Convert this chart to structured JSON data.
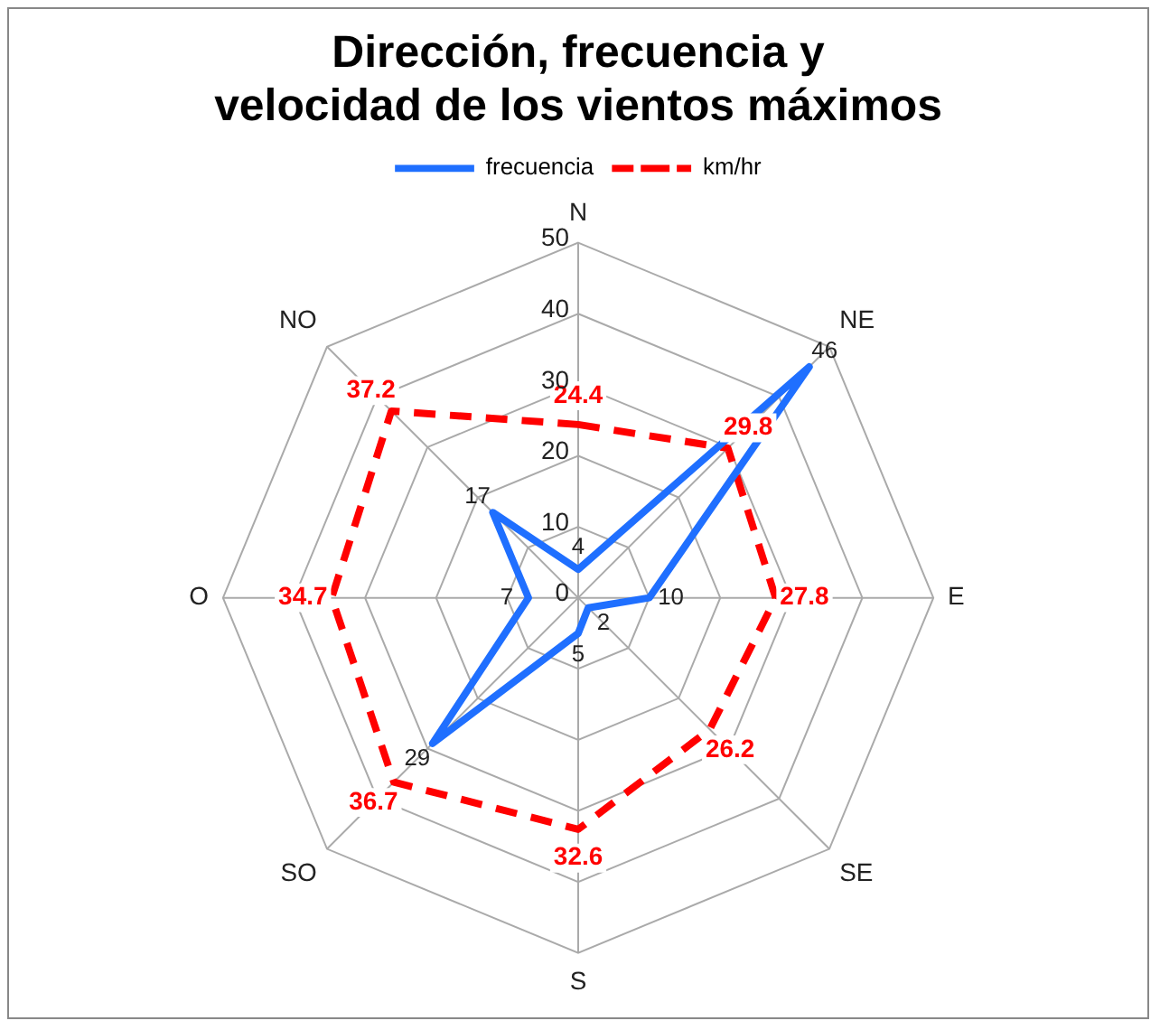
{
  "chart_data": {
    "type": "radar",
    "title": "Dirección, frecuencia y velocidad de los vientos máximos",
    "categories": [
      "N",
      "NE",
      "E",
      "SE",
      "S",
      "SO",
      "O",
      "NO"
    ],
    "series": [
      {
        "name": "frecuencia",
        "color": "#1f6fff",
        "line_style": "solid",
        "values": [
          4,
          46,
          10,
          2,
          5,
          29,
          7,
          17
        ]
      },
      {
        "name": "km/hr",
        "color": "#ff0000",
        "line_style": "dashed",
        "values": [
          24.4,
          29.8,
          27.8,
          26.2,
          32.6,
          36.7,
          34.7,
          37.2
        ]
      }
    ],
    "ylim": [
      0,
      50
    ],
    "yticks": [
      0,
      10,
      20,
      30,
      40,
      50
    ],
    "grid": true,
    "legend": "top",
    "marker": "none",
    "data_labels": true
  }
}
